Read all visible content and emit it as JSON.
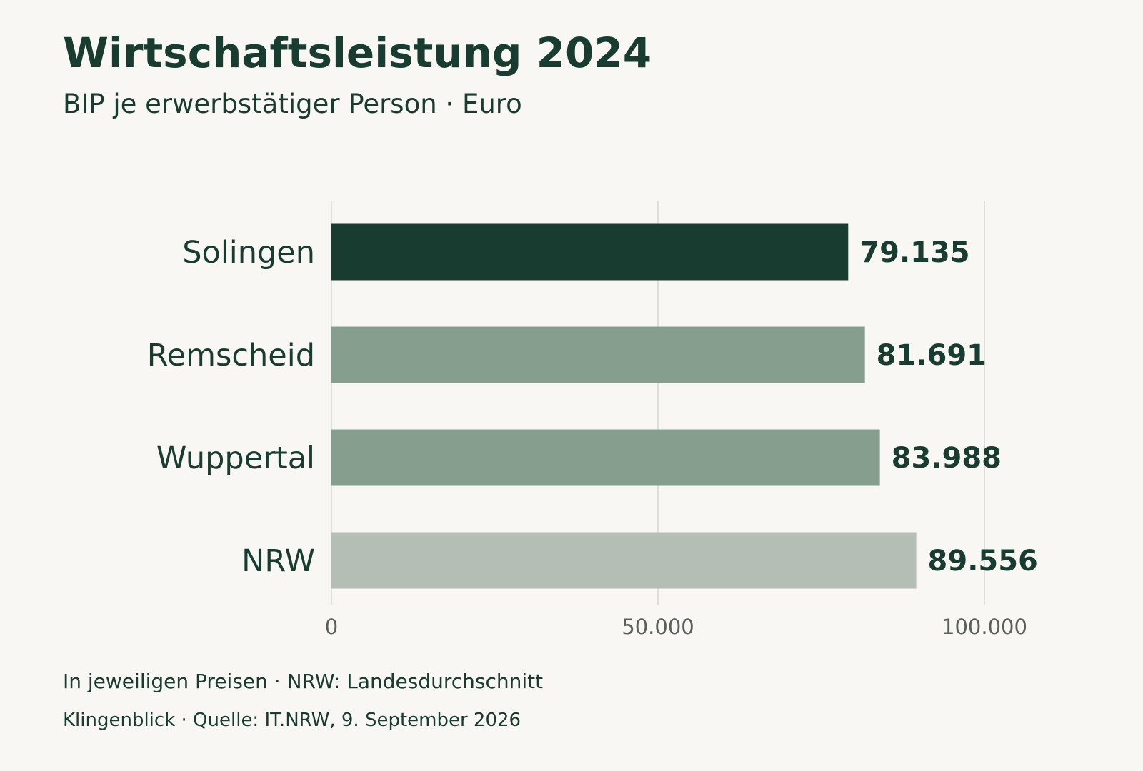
{
  "chart_data": {
    "type": "bar",
    "orientation": "horizontal",
    "title": "Wirtschaftsleistung 2024",
    "subtitle": "BIP je erwerbstätiger Person · Euro",
    "categories": [
      "Solingen",
      "Remscheid",
      "Wuppertal",
      "NRW"
    ],
    "values": [
      79135,
      81691,
      83988,
      89556
    ],
    "value_labels": [
      "79.135",
      "81.691",
      "83.988",
      "89.556"
    ],
    "bar_colors": [
      "#183d30",
      "#869e8d",
      "#869e8d",
      "#b4beb5"
    ],
    "xlim": [
      0,
      110000
    ],
    "x_ticks": [
      0,
      50000,
      100000
    ],
    "x_tick_labels": [
      "0",
      "50.000",
      "100.000"
    ],
    "grid": "vertical",
    "xlabel": "",
    "ylabel": ""
  },
  "footer": {
    "note": "In jeweiligen Preisen · NRW: Landesdurchschnitt",
    "source": "Klingenblick · Quelle: IT.NRW, 9. September 2026"
  },
  "colors": {
    "background": "#f8f7f3",
    "text": "#183d30",
    "grid": "#d5d6d2",
    "tick_text": "#5b5f5c"
  }
}
